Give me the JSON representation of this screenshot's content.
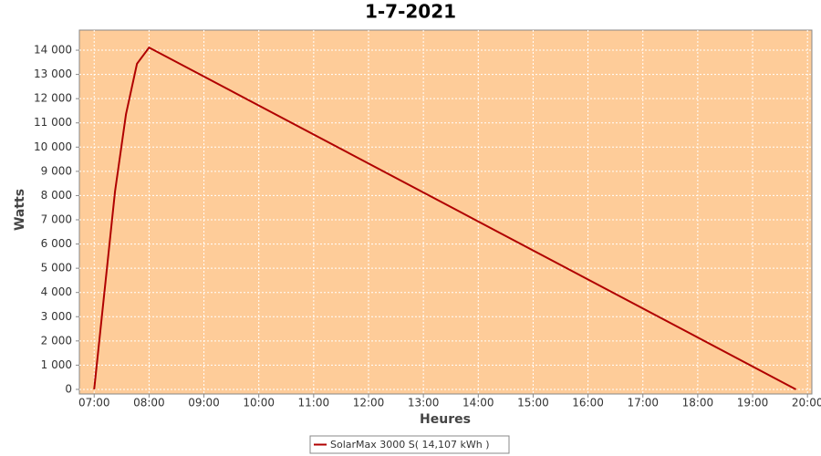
{
  "chart_data": {
    "type": "line",
    "title": "1-7-2021",
    "x_label": "Heures",
    "y_label": "Watts",
    "x": [
      7.0,
      7.38,
      7.58,
      7.78,
      8.0,
      19.79
    ],
    "series": [
      {
        "name": "SolarMax 3000 S( 14,107 kWh )",
        "color": "#b00000",
        "values": [
          0,
          8170,
          11360,
          13440,
          14110,
          0
        ]
      }
    ],
    "xlim": [
      6.73,
      20.08
    ],
    "ylim": [
      -190,
      14830
    ],
    "xticks": [
      {
        "value": 7,
        "label": "07:00"
      },
      {
        "value": 8,
        "label": "08:00"
      },
      {
        "value": 9,
        "label": "09:00"
      },
      {
        "value": 10,
        "label": "10:00"
      },
      {
        "value": 11,
        "label": "11:00"
      },
      {
        "value": 12,
        "label": "12:00"
      },
      {
        "value": 13,
        "label": "13:00"
      },
      {
        "value": 14,
        "label": "14:00"
      },
      {
        "value": 15,
        "label": "15:00"
      },
      {
        "value": 16,
        "label": "16:00"
      },
      {
        "value": 17,
        "label": "17:00"
      },
      {
        "value": 18,
        "label": "18:00"
      },
      {
        "value": 19,
        "label": "19:00"
      },
      {
        "value": 20,
        "label": "20:00"
      }
    ],
    "yticks": [
      0,
      {
        "value": 1000,
        "label": "1 000"
      },
      {
        "value": 2000,
        "label": "2 000"
      },
      {
        "value": 3000,
        "label": "3 000"
      },
      {
        "value": 4000,
        "label": "4 000"
      },
      {
        "value": 5000,
        "label": "5 000"
      },
      {
        "value": 6000,
        "label": "6 000"
      },
      {
        "value": 7000,
        "label": "7 000"
      },
      {
        "value": 8000,
        "label": "8 000"
      },
      {
        "value": 9000,
        "label": "9 000"
      },
      {
        "value": 10000,
        "label": "10 000"
      },
      {
        "value": 11000,
        "label": "11 000"
      },
      {
        "value": 12000,
        "label": "12 000"
      },
      {
        "value": 13000,
        "label": "13 000"
      },
      {
        "value": 14000,
        "label": "14 000"
      }
    ],
    "grid": true,
    "background": "#fecc99",
    "legend": "bottom"
  }
}
